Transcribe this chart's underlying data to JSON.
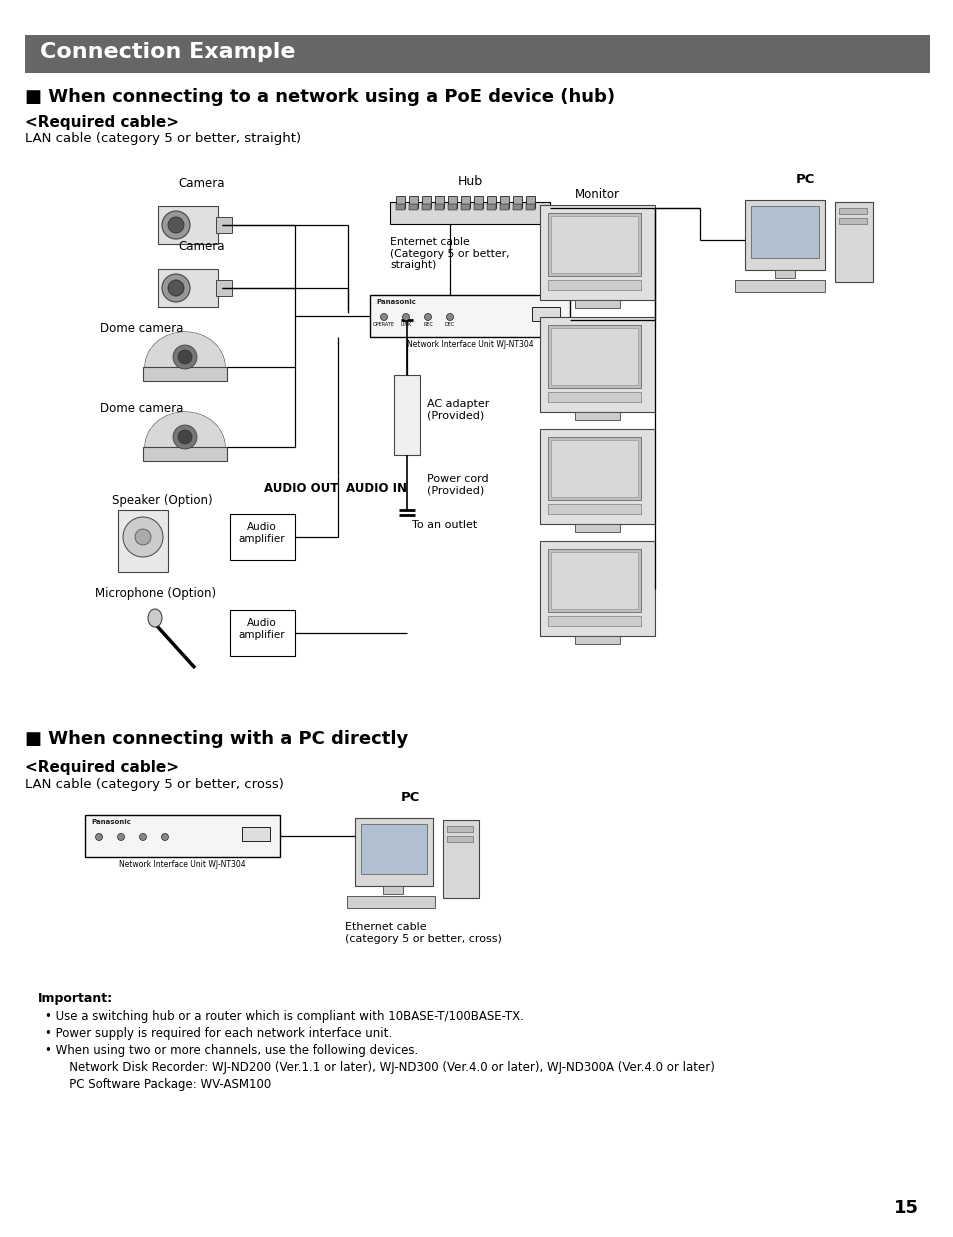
{
  "title": "Connection Example",
  "title_bg": "#666666",
  "title_fg": "#ffffff",
  "section1_title": "■ When connecting to a network using a PoE device (hub)",
  "section1_req_label": "<Required cable>",
  "section1_req_text": "LAN cable (category 5 or better, straight)",
  "section2_title": "■ When connecting with a PC directly",
  "section2_req_label": "<Required cable>",
  "section2_req_text": "LAN cable (category 5 or better, cross)",
  "important_title": "Important:",
  "important_bullets": [
    "Use a switching hub or a router which is compliant with 10BASE-T/100BASE-TX.",
    "Power supply is required for each network interface unit.",
    "When using two or more channels, use the following devices.",
    "   Network Disk Recorder: WJ-ND200 (Ver.1.1 or later), WJ-ND300 (Ver.4.0 or later), WJ-ND300A (Ver.4.0 or later)",
    "   PC Software Package: WV-ASM100"
  ],
  "page_number": "15",
  "bg_color": "#ffffff",
  "text_color": "#000000"
}
